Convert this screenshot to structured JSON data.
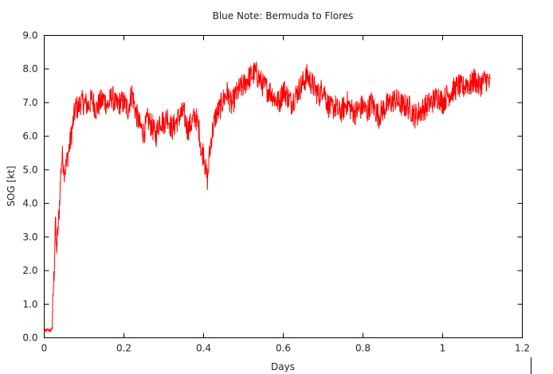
{
  "chart_data": {
    "type": "line",
    "title": "Blue Note: Bermuda to Flores",
    "xlabel": "Days",
    "ylabel": "SOG [kt]",
    "xlim": [
      0,
      1.2
    ],
    "ylim": [
      0,
      9
    ],
    "grid": false,
    "x_ticks": [
      0,
      0.2,
      0.4,
      0.6,
      0.8,
      1,
      1.2
    ],
    "x_tick_labels": [
      "0",
      "0.2",
      "0.4",
      "0.6",
      "0.8",
      "1",
      "1.2"
    ],
    "y_ticks": [
      0,
      1,
      2,
      3,
      4,
      5,
      6,
      7,
      8,
      9
    ],
    "y_tick_labels": [
      "0.0",
      "1.0",
      "2.0",
      "3.0",
      "4.0",
      "5.0",
      "6.0",
      "7.0",
      "8.0",
      "9.0"
    ],
    "series": [
      {
        "color": "#ff0000",
        "x": [
          0,
          0.005,
          0.01,
          0.015,
          0.02,
          0.022,
          0.025,
          0.028,
          0.03,
          0.032,
          0.035,
          0.038,
          0.04,
          0.043,
          0.046,
          0.05,
          0.055,
          0.06,
          0.065,
          0.07,
          0.075,
          0.08,
          0.085,
          0.09,
          0.1,
          0.11,
          0.12,
          0.13,
          0.14,
          0.15,
          0.16,
          0.17,
          0.18,
          0.19,
          0.2,
          0.21,
          0.22,
          0.23,
          0.24,
          0.25,
          0.26,
          0.27,
          0.28,
          0.29,
          0.3,
          0.31,
          0.32,
          0.33,
          0.34,
          0.35,
          0.36,
          0.37,
          0.38,
          0.39,
          0.395,
          0.4,
          0.405,
          0.41,
          0.415,
          0.42,
          0.43,
          0.44,
          0.45,
          0.46,
          0.47,
          0.48,
          0.49,
          0.5,
          0.51,
          0.52,
          0.53,
          0.54,
          0.55,
          0.56,
          0.57,
          0.58,
          0.59,
          0.6,
          0.61,
          0.62,
          0.63,
          0.64,
          0.65,
          0.66,
          0.67,
          0.68,
          0.69,
          0.7,
          0.71,
          0.72,
          0.73,
          0.74,
          0.75,
          0.76,
          0.77,
          0.78,
          0.79,
          0.8,
          0.81,
          0.82,
          0.83,
          0.84,
          0.85,
          0.86,
          0.87,
          0.88,
          0.89,
          0.9,
          0.91,
          0.92,
          0.93,
          0.94,
          0.95,
          0.96,
          0.97,
          0.98,
          0.99,
          1.0,
          1.01,
          1.02,
          1.03,
          1.04,
          1.05,
          1.06,
          1.07,
          1.08,
          1.09,
          1.1,
          1.11,
          1.12
        ],
        "y": [
          0.2,
          0.2,
          0.25,
          0.2,
          0.3,
          1.2,
          2.0,
          3.6,
          2.6,
          2.8,
          3.3,
          3.9,
          4.5,
          5.2,
          5.4,
          5.0,
          5.1,
          5.5,
          5.8,
          6.2,
          6.6,
          6.9,
          6.8,
          7.0,
          7.0,
          6.9,
          7.1,
          6.8,
          7.0,
          7.1,
          6.9,
          7.2,
          6.9,
          7.0,
          7.0,
          6.8,
          7.3,
          6.7,
          6.3,
          6.1,
          6.5,
          6.3,
          6.0,
          6.5,
          6.4,
          6.6,
          6.2,
          6.4,
          6.6,
          6.7,
          6.2,
          6.4,
          6.6,
          6.1,
          5.4,
          5.6,
          5.0,
          4.7,
          5.5,
          6.0,
          6.6,
          6.8,
          7.1,
          7.3,
          6.9,
          7.2,
          7.4,
          7.5,
          7.7,
          7.8,
          7.9,
          7.7,
          7.5,
          7.4,
          7.3,
          7.1,
          7.0,
          7.4,
          7.2,
          7.0,
          7.2,
          7.4,
          7.6,
          7.8,
          7.6,
          7.4,
          7.2,
          7.5,
          7.0,
          6.8,
          6.9,
          6.7,
          6.8,
          7.0,
          6.8,
          6.7,
          6.8,
          6.9,
          6.7,
          7.0,
          6.8,
          6.6,
          6.8,
          6.9,
          7.0,
          7.1,
          7.0,
          6.9,
          6.9,
          6.8,
          6.6,
          6.7,
          6.8,
          6.9,
          7.0,
          7.1,
          7.2,
          7.0,
          7.2,
          7.3,
          7.4,
          7.5,
          7.4,
          7.6,
          7.5,
          7.7,
          7.5,
          7.6,
          7.7,
          7.5
        ]
      }
    ]
  }
}
